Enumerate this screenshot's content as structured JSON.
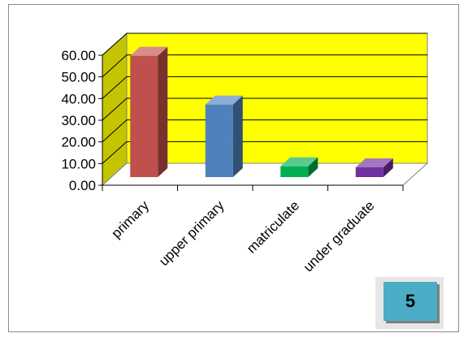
{
  "chart_data": {
    "type": "bar",
    "categories": [
      "primary",
      "upper primary",
      "matriculate",
      "under graduate"
    ],
    "values": [
      56,
      33.5,
      5,
      4.5
    ],
    "colors": [
      "#c0504d",
      "#4f81bd",
      "#00b050",
      "#7030a0"
    ],
    "y_ticks": [
      "0.00",
      "10.00",
      "20.00",
      "30.00",
      "40.00",
      "50.00",
      "60.00"
    ],
    "ylim": [
      0,
      60
    ],
    "grid": true,
    "legend": "none",
    "style": {
      "back_wall_color": "#ffff00",
      "side_wall_color": "#c4c400",
      "floor_color": "#ffffff"
    }
  },
  "page_badge": {
    "label": "5",
    "color": "#4bacc6"
  }
}
